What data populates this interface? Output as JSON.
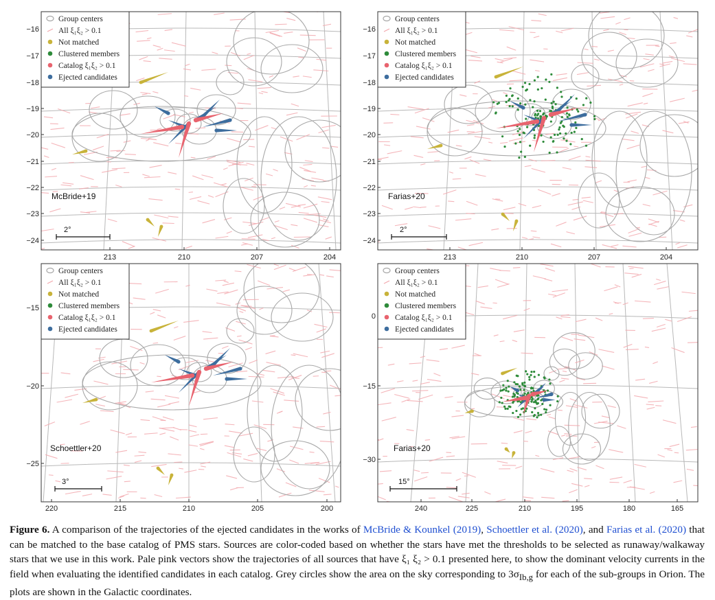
{
  "colors": {
    "grid": "#b8b8b8",
    "group_circle": "#a8a8a8",
    "all_vectors": "#f3a8ad",
    "not_matched": "#c8b33a",
    "clustered": "#2e8b3a",
    "catalog": "#e8636e",
    "ejected": "#3d6d9e",
    "link": "#1f4fd1"
  },
  "legend": {
    "group_centers": "Group centers",
    "all": "All ξ₁ξ₂ > 0.1",
    "not_matched": "Not matched",
    "clustered": "Clustered members",
    "catalog": "Catalog ξ₁ξ₂ > 0.1",
    "ejected": "Ejected candidates"
  },
  "panels": [
    {
      "id": "mcbride",
      "label": "McBride+19",
      "scalebar": "2°",
      "x_ticks": [
        "213",
        "210",
        "207",
        "204"
      ],
      "y_ticks": [
        "−16",
        "−17",
        "−18",
        "−19",
        "−20",
        "−21",
        "−22",
        "−23",
        "−24"
      ]
    },
    {
      "id": "farias-a",
      "label": "Farias+20",
      "scalebar": "2°",
      "x_ticks": [
        "213",
        "210",
        "207",
        "204"
      ],
      "y_ticks": [
        "−16",
        "−17",
        "−18",
        "−19",
        "−20",
        "−21",
        "−22",
        "−23",
        "−24"
      ]
    },
    {
      "id": "schoettler",
      "label": "Schoettler+20",
      "scalebar": "3°",
      "x_ticks": [
        "220",
        "215",
        "210",
        "205",
        "200"
      ],
      "y_ticks": [
        "−15",
        "−20",
        "−25"
      ]
    },
    {
      "id": "farias-b",
      "label": "Farias+20",
      "scalebar": "15°",
      "x_ticks": [
        "240",
        "225",
        "210",
        "195",
        "180",
        "165"
      ],
      "y_ticks": [
        "0",
        "−15",
        "−30"
      ]
    }
  ],
  "caption": {
    "label": "Figure 6.",
    "t1": " A comparison of the trajectories of the ejected candidates in the works of ",
    "c1": "McBride & Kounkel (2019)",
    "t2": ", ",
    "c2": "Schoettler et al. (2020)",
    "t3": ", and ",
    "c3": "Farias et al. (2020)",
    "t4": " that can be matched to the base catalog of PMS stars. Sources are color-coded based on whether the stars have met the thresholds to be selected as runaway/walkaway stars that we use in this work. Pale pink vectors show the trajectories of all sources that have ξ₁ ξ₂ > 0.1 presented here, to show the dominant velocity currents in the field when evaluating the identified candidates in each catalog. Grey circles show the area on the sky corresponding to 3σ",
    "sub": "Ib,g",
    "t5": " for each of the sub-groups in Orion. The plots are shown in the Galactic coordinates."
  }
}
